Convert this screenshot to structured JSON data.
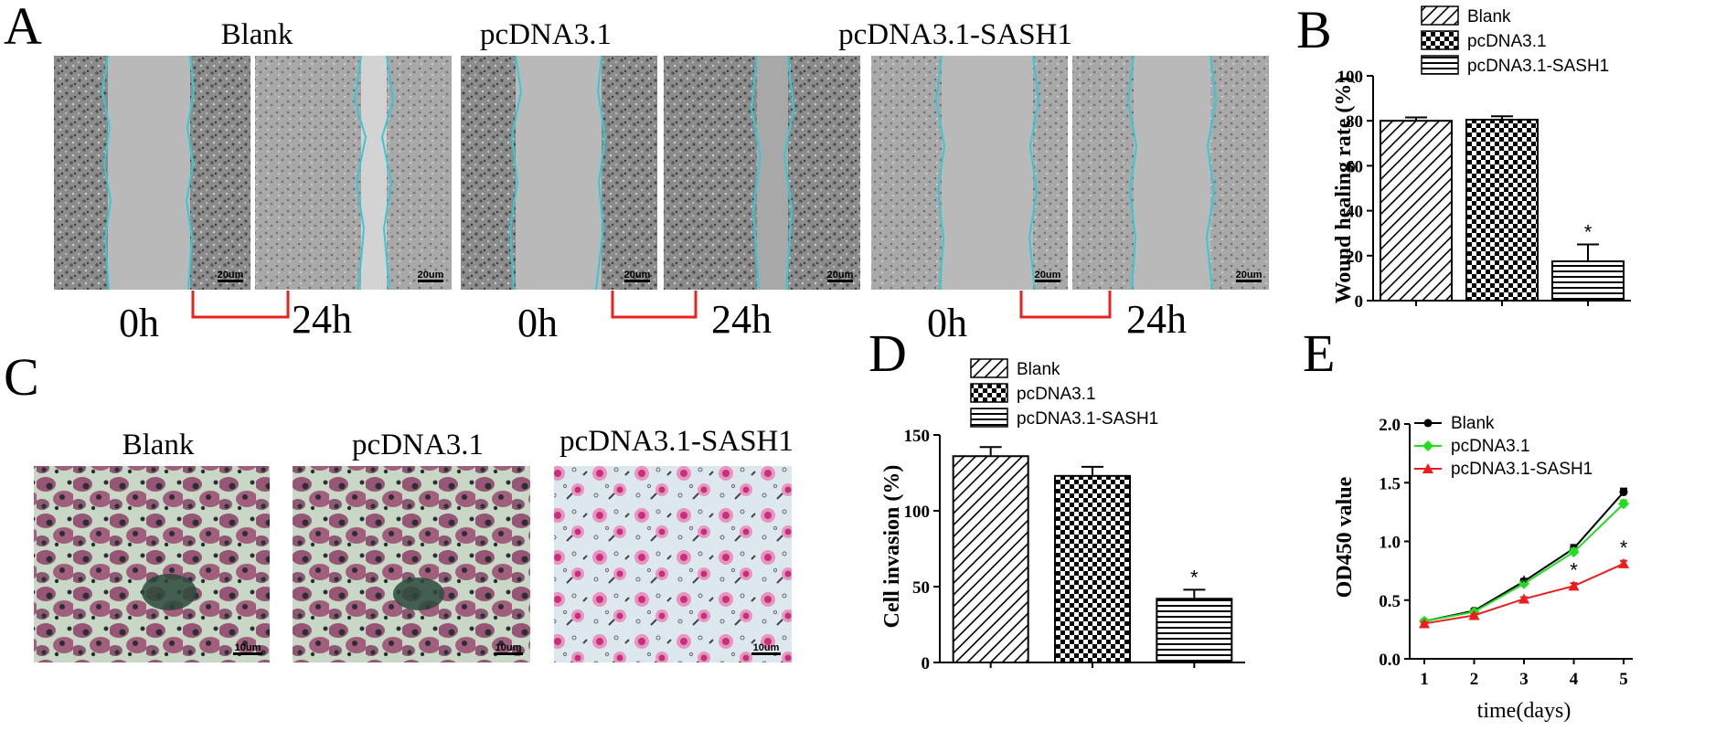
{
  "panels": {
    "A": {
      "label": "A",
      "groups": [
        {
          "title": "Blank",
          "t0": "0h",
          "t24": "24h",
          "scale0": "20um",
          "scale24": "20um"
        },
        {
          "title": "pcDNA3.1",
          "t0": "0h",
          "t24": "24h",
          "scale0": "20um",
          "scale24": "20um"
        },
        {
          "title": "pcDNA3.1-SASH1",
          "t0": "0h",
          "t24": "24h",
          "scale0": "20um",
          "scale24": "20um"
        }
      ]
    },
    "C": {
      "label": "C",
      "groups": [
        {
          "title": "Blank",
          "scale": "10um"
        },
        {
          "title": "pcDNA3.1",
          "scale": "10um"
        },
        {
          "title": "pcDNA3.1-SASH1",
          "scale": "10um"
        }
      ]
    }
  },
  "colors": {
    "wound_edge": "#36c8d8",
    "bracket": "#e8231f",
    "scratch_bg": "#b9b9b9",
    "cell_texture": "#707070",
    "he_bg": "#c9d8c6",
    "he_cell": "#8e3f66",
    "nucleus": "#2a2f32",
    "sash1_bg": "#dce7ee",
    "sash1_cell": "#d33a8a",
    "blank_line": "#000000",
    "pcdna_line": "#22dd22",
    "sash1_line": "#ee1c1c"
  },
  "chart_data": [
    {
      "panel": "B",
      "type": "bar",
      "categories": [
        "Blank",
        "pcDNA3.1",
        "pcDNA3.1-SASH1"
      ],
      "values": [
        80,
        80.5,
        17.5
      ],
      "errors": [
        1.5,
        1.5,
        7.5
      ],
      "significance": [
        "",
        "",
        "*"
      ],
      "patterns": [
        "diagonal-hatch",
        "checkerboard",
        "horizontal-lines"
      ],
      "title": "",
      "xlabel": "",
      "ylabel": "Wound healing rate (%)",
      "ylim": [
        0,
        100
      ],
      "yticks": [
        0,
        20,
        40,
        60,
        80,
        100
      ],
      "legend": [
        "Blank",
        "pcDNA3.1",
        "pcDNA3.1-SASH1"
      ],
      "legend_position": "top",
      "grid": false
    },
    {
      "panel": "D",
      "type": "bar",
      "categories": [
        "Blank",
        "pcDNA3.1",
        "pcDNA3.1-SASH1"
      ],
      "values": [
        136,
        123,
        42
      ],
      "errors": [
        6,
        6,
        6
      ],
      "significance": [
        "",
        "",
        "*"
      ],
      "patterns": [
        "diagonal-hatch",
        "checkerboard",
        "horizontal-lines"
      ],
      "title": "",
      "xlabel": "",
      "ylabel": "Cell invasion (%)",
      "ylim": [
        0,
        150
      ],
      "yticks": [
        0,
        50,
        100,
        150
      ],
      "legend": [
        "Blank",
        "pcDNA3.1",
        "pcDNA3.1-SASH1"
      ],
      "legend_position": "top",
      "grid": false
    },
    {
      "panel": "E",
      "type": "line",
      "x": [
        1,
        2,
        3,
        4,
        5
      ],
      "series": [
        {
          "name": "Blank",
          "values": [
            0.32,
            0.41,
            0.66,
            0.94,
            1.42
          ],
          "errors": [
            0.01,
            0.01,
            0.015,
            0.03,
            0.03
          ],
          "marker": "circle",
          "significance": [
            "",
            "",
            "",
            "",
            ""
          ]
        },
        {
          "name": "pcDNA3.1",
          "values": [
            0.32,
            0.4,
            0.64,
            0.91,
            1.32
          ],
          "errors": [
            0.01,
            0.01,
            0.015,
            0.03,
            0.03
          ],
          "marker": "diamond",
          "significance": [
            "",
            "",
            "",
            "",
            ""
          ]
        },
        {
          "name": "pcDNA3.1-SASH1",
          "values": [
            0.3,
            0.37,
            0.51,
            0.62,
            0.81
          ],
          "errors": [
            0.01,
            0.01,
            0.015,
            0.025,
            0.025
          ],
          "marker": "triangle",
          "significance": [
            "",
            "",
            "*",
            "*",
            "*"
          ]
        }
      ],
      "title": "",
      "xlabel": "time(days)",
      "ylabel": "OD450 value",
      "xlim": [
        1,
        5
      ],
      "ylim": [
        0,
        2.0
      ],
      "yticks": [
        "0.0",
        "0.5",
        "1.0",
        "1.5",
        "2.0"
      ],
      "xticks": [
        "1",
        "2",
        "3",
        "4",
        "5"
      ],
      "legend_position": "top-left",
      "grid": false
    }
  ],
  "panel_labels": {
    "B": "B",
    "D": "D",
    "E": "E"
  }
}
